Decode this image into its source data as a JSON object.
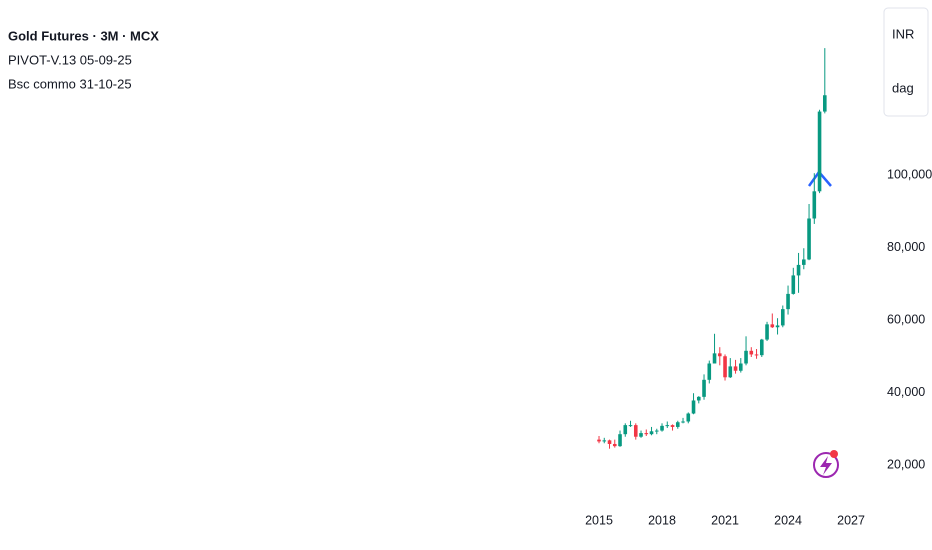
{
  "chart_data": {
    "type": "candlestick",
    "title": "Gold Futures · 3M · MCX",
    "annotations": [
      "PIVOT-V.13 05-09-25",
      "Bsc commo 31-10-25"
    ],
    "currency": "INR",
    "unit": "dag",
    "up_color": "#089981",
    "down_color": "#f23645",
    "x": [
      2015,
      2015.25,
      2015.5,
      2015.75,
      2016,
      2016.25,
      2016.5,
      2016.75,
      2017,
      2017.25,
      2017.5,
      2017.75,
      2018,
      2018.25,
      2018.5,
      2018.75,
      2019,
      2019.25,
      2019.5,
      2019.75,
      2020,
      2020.25,
      2020.5,
      2020.75,
      2021,
      2021.25,
      2021.5,
      2021.75,
      2022,
      2022.25,
      2022.5,
      2022.75,
      2023,
      2023.25,
      2023.5,
      2023.75,
      2024,
      2024.25,
      2024.5,
      2024.75,
      2025,
      2025.25,
      2025.5,
      2025.75
    ],
    "open": [
      27000,
      26500,
      26800,
      25800,
      25200,
      28500,
      31000,
      31000,
      27800,
      28800,
      28500,
      29300,
      29500,
      30800,
      31000,
      30500,
      31800,
      32000,
      34200,
      37800,
      38800,
      43500,
      48000,
      50800,
      50000,
      44200,
      47200,
      46000,
      48000,
      51500,
      50500,
      50300,
      54600,
      58800,
      58000,
      58500,
      63000,
      67200,
      72300,
      75200,
      76700,
      88000,
      95500,
      117500
    ],
    "high": [
      28000,
      27500,
      27000,
      27000,
      29500,
      31500,
      32200,
      31500,
      29500,
      29800,
      30500,
      30000,
      31500,
      32000,
      31200,
      32200,
      33000,
      34500,
      39800,
      39000,
      45000,
      48800,
      56200,
      52500,
      50500,
      49500,
      49000,
      49500,
      55500,
      52500,
      52000,
      54800,
      59500,
      61800,
      60500,
      64000,
      69500,
      74400,
      78500,
      79800,
      92000,
      100500,
      118000,
      135000
    ],
    "low": [
      26000,
      26000,
      24500,
      24800,
      25000,
      27800,
      30500,
      27000,
      27500,
      28000,
      28200,
      28500,
      29200,
      30200,
      29500,
      30000,
      31500,
      31500,
      34000,
      37000,
      38000,
      42500,
      48000,
      47500,
      43300,
      44000,
      45200,
      45500,
      47500,
      49800,
      49300,
      49800,
      54200,
      57800,
      56000,
      58000,
      61500,
      67000,
      67500,
      74000,
      76500,
      86500,
      95000,
      117000
    ],
    "close": [
      26500,
      26800,
      25800,
      25200,
      28500,
      31000,
      31000,
      27800,
      28800,
      28500,
      29300,
      29500,
      30800,
      31000,
      30500,
      31800,
      32000,
      34200,
      37800,
      38800,
      43500,
      48000,
      50800,
      50000,
      44200,
      47200,
      46000,
      48000,
      51500,
      50500,
      50300,
      54600,
      58800,
      58000,
      58500,
      63000,
      67200,
      72300,
      75200,
      76700,
      88000,
      95500,
      117500,
      122000
    ],
    "xlim": [
      1986.48,
      2028.14
    ],
    "xticks": [
      2015,
      2018,
      2021,
      2024,
      2027
    ],
    "ylim": [
      10345,
      148276
    ],
    "yticks": [
      {
        "value": 20000,
        "label": "20,000"
      },
      {
        "value": 40000,
        "label": "40,000"
      },
      {
        "value": 60000,
        "label": "60,000"
      },
      {
        "value": 80000,
        "label": "80,000"
      },
      {
        "value": 100000,
        "label": "100,000"
      }
    ]
  }
}
